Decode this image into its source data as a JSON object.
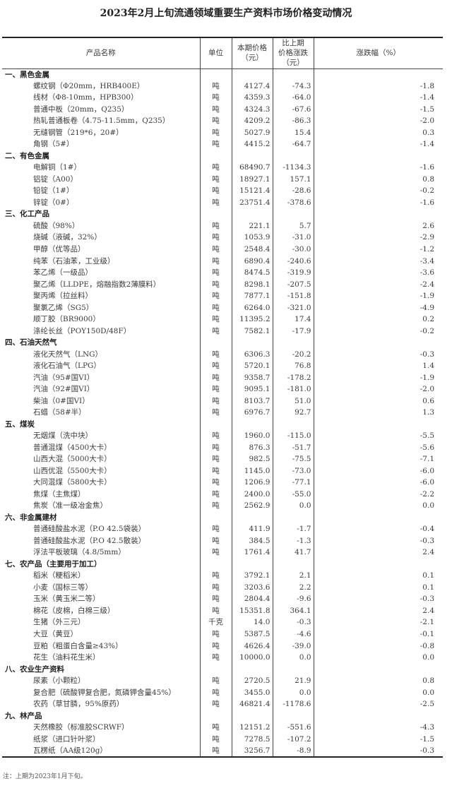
{
  "title": "2023年2月上旬流通领域重要生产资料市场价格变动情况",
  "headers": {
    "name": "产品名称",
    "unit": "单位",
    "price_l1": "本期价格",
    "price_l2": "（元）",
    "change_l1": "比上期",
    "change_l2": "价格涨跌",
    "change_l3": "（元）",
    "pct": "涨跌幅（%）"
  },
  "sections": [
    {
      "name": "一、黑色金属",
      "items": [
        [
          "螺纹钢（Φ20mm，HRB400E）",
          "吨",
          "4127.4",
          "-74.3",
          "-1.8"
        ],
        [
          "线材（Φ8-10mm，HPB300）",
          "吨",
          "4359.3",
          "-64.0",
          "-1.4"
        ],
        [
          "普通中板（20mm，Q235）",
          "吨",
          "4324.3",
          "-67.6",
          "-1.5"
        ],
        [
          "热轧普通板卷（4.75-11.5mm，Q235）",
          "吨",
          "4209.2",
          "-86.3",
          "-2.0"
        ],
        [
          "无缝钢管（219*6，20#）",
          "吨",
          "5027.9",
          "15.4",
          "0.3"
        ],
        [
          "角钢（5#）",
          "吨",
          "4415.2",
          "-64.7",
          "-1.4"
        ]
      ]
    },
    {
      "name": "二、有色金属",
      "items": [
        [
          "电解铜（1#）",
          "吨",
          "68490.7",
          "-1134.3",
          "-1.6"
        ],
        [
          "铝锭（A00）",
          "吨",
          "18927.1",
          "157.1",
          "0.8"
        ],
        [
          "铅锭（1#）",
          "吨",
          "15121.4",
          "-28.6",
          "-0.2"
        ],
        [
          "锌锭（0#）",
          "吨",
          "23751.4",
          "-378.6",
          "-1.6"
        ]
      ]
    },
    {
      "name": "三、化工产品",
      "items": [
        [
          "硫酸（98%）",
          "吨",
          "221.1",
          "5.7",
          "2.6"
        ],
        [
          "烧碱（液碱，32%）",
          "吨",
          "1053.9",
          "-31.0",
          "-2.9"
        ],
        [
          "甲醇（优等品）",
          "吨",
          "2548.4",
          "-30.0",
          "-1.2"
        ],
        [
          "纯苯（石油苯，工业级）",
          "吨",
          "6890.4",
          "-240.6",
          "-3.4"
        ],
        [
          "苯乙烯（一级品）",
          "吨",
          "8474.5",
          "-319.9",
          "-3.6"
        ],
        [
          "聚乙烯（LLDPE，熔融指数2薄膜料）",
          "吨",
          "8298.1",
          "-207.5",
          "-2.4"
        ],
        [
          "聚丙烯（拉丝料）",
          "吨",
          "7877.1",
          "-151.8",
          "-1.9"
        ],
        [
          "聚氯乙烯（SG5）",
          "吨",
          "6264.0",
          "-321.0",
          "-4.9"
        ],
        [
          "顺丁胶（BR9000）",
          "吨",
          "11395.2",
          "17.4",
          "0.2"
        ],
        [
          "涤纶长丝（POY150D/48F）",
          "吨",
          "7582.1",
          "-17.9",
          "-0.2"
        ]
      ]
    },
    {
      "name": "四、石油天然气",
      "items": [
        [
          "液化天然气（LNG）",
          "吨",
          "6306.3",
          "-20.2",
          "-0.3"
        ],
        [
          "液化石油气（LPG）",
          "吨",
          "5720.1",
          "76.8",
          "1.4"
        ],
        [
          "汽油（95#国VI）",
          "吨",
          "9358.7",
          "-178.2",
          "-1.9"
        ],
        [
          "汽油（92#国VI）",
          "吨",
          "9095.1",
          "-181.0",
          "-2.0"
        ],
        [
          "柴油（0#国VI）",
          "吨",
          "8103.7",
          "51.0",
          "0.6"
        ],
        [
          "石蜡（58#半）",
          "吨",
          "6976.7",
          "92.7",
          "1.3"
        ]
      ]
    },
    {
      "name": "五、煤炭",
      "items": [
        [
          "无烟煤（洗中块）",
          "吨",
          "1960.0",
          "-115.0",
          "-5.5"
        ],
        [
          "普通混煤（4500大卡）",
          "吨",
          "876.3",
          "-51.7",
          "-5.6"
        ],
        [
          "山西大混（5000大卡）",
          "吨",
          "982.5",
          "-75.5",
          "-7.1"
        ],
        [
          "山西优混（5500大卡）",
          "吨",
          "1145.0",
          "-73.0",
          "-6.0"
        ],
        [
          "大同混煤（5800大卡）",
          "吨",
          "1206.9",
          "-77.1",
          "-6.0"
        ],
        [
          "焦煤（主焦煤）",
          "吨",
          "2400.0",
          "-55.0",
          "-2.2"
        ],
        [
          "焦炭（准一级冶金焦）",
          "吨",
          "2562.9",
          "0.0",
          "0.0"
        ]
      ]
    },
    {
      "name": "六、非金属建材",
      "items": [
        [
          "普通硅酸盐水泥（P.O 42.5袋装）",
          "吨",
          "411.9",
          "-1.7",
          "-0.4"
        ],
        [
          "普通硅酸盐水泥（P.O 42.5散装）",
          "吨",
          "384.5",
          "-1.3",
          "-0.3"
        ],
        [
          "浮法平板玻璃（4.8/5mm）",
          "吨",
          "1761.4",
          "41.7",
          "2.4"
        ]
      ]
    },
    {
      "name": "七、农产品（主要用于加工）",
      "items": [
        [
          "稻米（粳稻米）",
          "吨",
          "3792.1",
          "2.1",
          "0.1"
        ],
        [
          "小麦（国标三等）",
          "吨",
          "3203.6",
          "2.2",
          "0.1"
        ],
        [
          "玉米（黄玉米二等）",
          "吨",
          "2804.4",
          "-9.6",
          "-0.3"
        ],
        [
          "棉花（皮棉，白棉三级）",
          "吨",
          "15351.8",
          "364.1",
          "2.4"
        ],
        [
          "生猪（外三元）",
          "千克",
          "14.0",
          "-0.3",
          "-2.1"
        ],
        [
          "大豆（黄豆）",
          "吨",
          "5387.5",
          "-4.6",
          "-0.1"
        ],
        [
          "豆粕（粗蛋白含量≥43%）",
          "吨",
          "4626.4",
          "-39.0",
          "-0.8"
        ],
        [
          "花生（油料花生米）",
          "吨",
          "10000.0",
          "0.0",
          "0.0"
        ]
      ]
    },
    {
      "name": "八、农业生产资料",
      "items": [
        [
          "尿素（小颗粒）",
          "吨",
          "2720.5",
          "21.9",
          "0.8"
        ],
        [
          "复合肥（硫酸钾复合肥，氮磷钾含量45%）",
          "吨",
          "3455.0",
          "0.0",
          "0.0"
        ],
        [
          "农药（草甘膦，95%原药）",
          "吨",
          "46821.4",
          "-1178.6",
          "-2.5"
        ]
      ]
    },
    {
      "name": "九、林产品",
      "items": [
        [
          "天然橡胶（标准胶SCRWF）",
          "吨",
          "12151.2",
          "-551.6",
          "-4.3"
        ],
        [
          "纸浆（进口针叶浆）",
          "吨",
          "7278.5",
          "-107.2",
          "-1.5"
        ],
        [
          "瓦楞纸（AA级120g）",
          "吨",
          "3256.7",
          "-8.9",
          "-0.3"
        ]
      ]
    }
  ],
  "note": "注：上期为2023年1月下旬。"
}
